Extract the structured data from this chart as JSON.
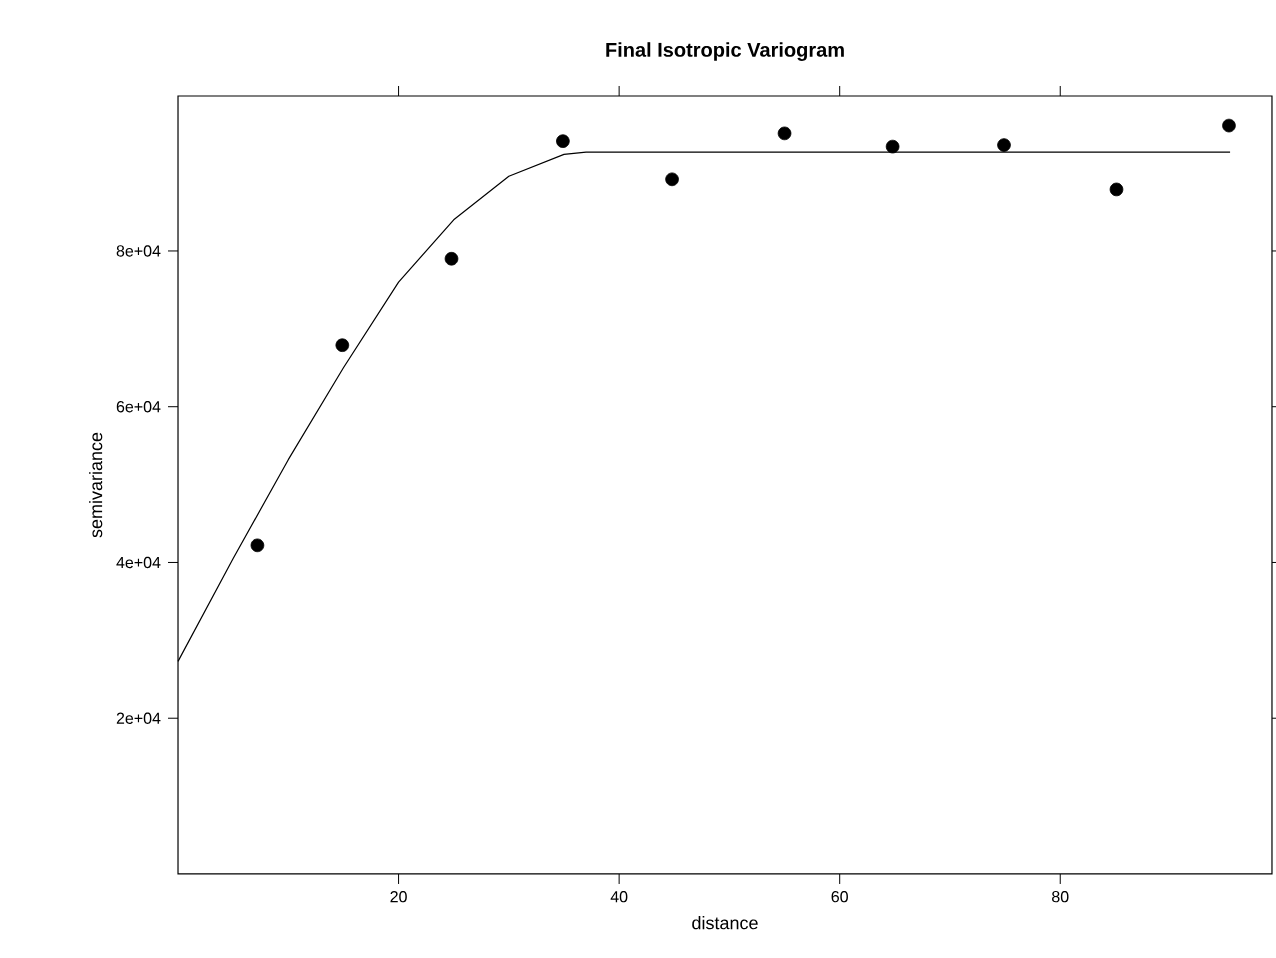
{
  "chart_data": {
    "type": "scatter",
    "title": "Final Isotropic Variogram",
    "xlabel": "distance",
    "ylabel": "semivariance",
    "xlim": [
      0,
      99.2
    ],
    "ylim": [
      0,
      99900
    ],
    "xticks": [
      20,
      40,
      60,
      80
    ],
    "yticks": [
      {
        "value": 20000,
        "label": "2e+04"
      },
      {
        "value": 40000,
        "label": "4e+04"
      },
      {
        "value": 60000,
        "label": "6e+04"
      },
      {
        "value": 80000,
        "label": "8e+04"
      }
    ],
    "grid": false,
    "series": [
      {
        "color": "#000000",
        "marker": "circle",
        "x": [
          7.2,
          14.9,
          24.8,
          34.9,
          44.8,
          55.0,
          64.8,
          74.9,
          85.1,
          95.3
        ],
        "values": [
          42200,
          67900,
          79000,
          94100,
          89200,
          95100,
          93400,
          93600,
          87900,
          96100
        ]
      },
      {
        "type": "line",
        "color": "#000000",
        "marker": "none",
        "line_style": "solid",
        "x": [
          0,
          5,
          10,
          15,
          20,
          25,
          30,
          35,
          37,
          95.4
        ],
        "values": [
          27300,
          40500,
          53200,
          65000,
          76000,
          84000,
          89600,
          92400,
          92700,
          92700
        ]
      }
    ]
  }
}
